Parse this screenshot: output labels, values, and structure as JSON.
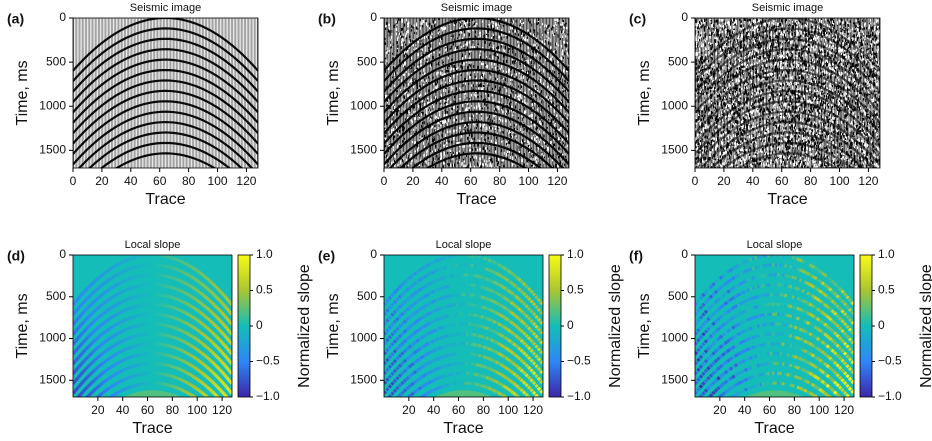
{
  "chart_data": [
    {
      "type": "seismic",
      "panel": "(a)",
      "title": "Seismic image",
      "xlabel": "Trace",
      "ylabel": "Time, ms",
      "xlim": [
        0,
        128
      ],
      "ylim": [
        1700,
        0
      ],
      "xticks": [
        0,
        20,
        40,
        60,
        80,
        100,
        120
      ],
      "yticks": [
        0,
        500,
        1000,
        1500
      ]
    },
    {
      "type": "seismic",
      "panel": "(b)",
      "title": "Seismic image",
      "xlabel": "Trace",
      "ylabel": "Time, ms",
      "xlim": [
        0,
        128
      ],
      "ylim": [
        1700,
        0
      ],
      "xticks": [
        0,
        20,
        40,
        60,
        80,
        100,
        120
      ],
      "yticks": [
        0,
        500,
        1000,
        1500
      ]
    },
    {
      "type": "seismic",
      "panel": "(c)",
      "title": "Seismic image",
      "xlabel": "Trace",
      "ylabel": "Time, ms",
      "xlim": [
        0,
        128
      ],
      "ylim": [
        1700,
        0
      ],
      "xticks": [
        0,
        20,
        40,
        60,
        80,
        100,
        120
      ],
      "yticks": [
        0,
        500,
        1000,
        1500
      ]
    },
    {
      "type": "slope",
      "panel": "(d)",
      "title": "Local slope",
      "xlabel": "Trace",
      "ylabel": "Time, ms",
      "xlim": [
        0,
        128
      ],
      "ylim": [
        1700,
        0
      ],
      "xticks": [
        20,
        40,
        60,
        80,
        100,
        120
      ],
      "yticks": [
        0,
        500,
        1000,
        1500
      ],
      "colorbar_label": "Normalized slope",
      "clim": [
        -1,
        1
      ],
      "cticks": [
        {
          "value": 1,
          "label": "1.0"
        },
        0.5,
        0,
        {
          "value": -0.5,
          "label": "−0.5"
        },
        {
          "value": -1,
          "label": "−1.0"
        }
      ]
    },
    {
      "type": "slope",
      "panel": "(e)",
      "title": "Local slope",
      "xlabel": "Trace",
      "ylabel": "Time, ms",
      "xlim": [
        0,
        128
      ],
      "ylim": [
        1700,
        0
      ],
      "xticks": [
        20,
        40,
        60,
        80,
        100,
        120
      ],
      "yticks": [
        0,
        500,
        1000,
        1500
      ],
      "colorbar_label": "Normalized slope",
      "clim": [
        -1,
        1
      ],
      "cticks": [
        {
          "value": 1,
          "label": "1.0"
        },
        0.5,
        0,
        {
          "value": -0.5,
          "label": "−0.5"
        },
        {
          "value": -1,
          "label": "−1.0"
        }
      ]
    },
    {
      "type": "slope",
      "panel": "(f)",
      "title": "Local slope",
      "xlabel": "Trace",
      "ylabel": "Time, ms",
      "xlim": [
        0,
        128
      ],
      "ylim": [
        1700,
        0
      ],
      "xticks": [
        20,
        40,
        60,
        80,
        100,
        120
      ],
      "yticks": [
        0,
        500,
        1000,
        1500
      ],
      "colorbar_label": "Normalized slope",
      "clim": [
        -1,
        1
      ],
      "cticks": [
        {
          "value": 1,
          "label": "1.0"
        },
        0.5,
        0,
        {
          "value": -0.5,
          "label": "−0.5"
        },
        {
          "value": -1,
          "label": "−1.0"
        }
      ]
    }
  ]
}
